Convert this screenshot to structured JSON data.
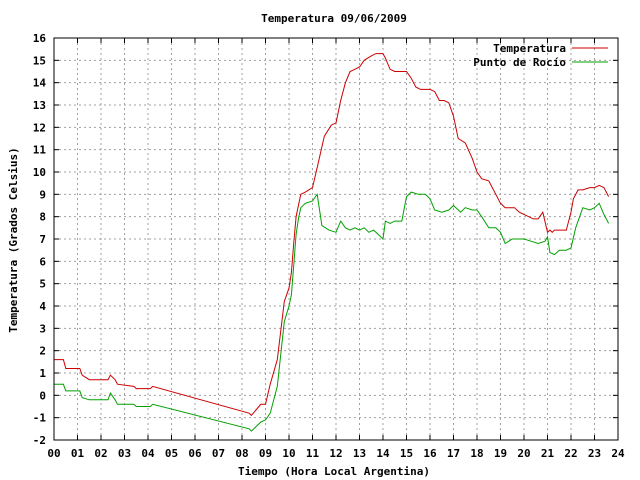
{
  "chart_data": {
    "type": "line",
    "title": "Temperatura 09/06/2009",
    "xlabel": "Tiempo (Hora Local Argentina)",
    "ylabel": "Temperatura (Grados Celsius)",
    "xlim": [
      0,
      24
    ],
    "ylim": [
      -2,
      16
    ],
    "xticks": [
      0,
      1,
      2,
      3,
      4,
      5,
      6,
      7,
      8,
      9,
      10,
      11,
      12,
      13,
      14,
      15,
      16,
      17,
      18,
      19,
      20,
      21,
      22,
      23,
      24
    ],
    "xtick_labels": [
      "00",
      "01",
      "02",
      "03",
      "04",
      "05",
      "06",
      "07",
      "08",
      "09",
      "10",
      "11",
      "12",
      "13",
      "14",
      "15",
      "16",
      "17",
      "18",
      "19",
      "20",
      "21",
      "22",
      "23",
      "24"
    ],
    "yticks": [
      -2,
      -1,
      0,
      1,
      2,
      3,
      4,
      5,
      6,
      7,
      8,
      9,
      10,
      11,
      12,
      13,
      14,
      15,
      16
    ],
    "grid": true,
    "legend_position": "top-right",
    "series": [
      {
        "name": "Temperatura",
        "color": "#cc0000",
        "x": [
          0,
          0.4,
          0.5,
          1.1,
          1.2,
          1.5,
          1.6,
          2.3,
          2.4,
          2.6,
          2.7,
          3.4,
          3.5,
          4.1,
          4.2,
          8.3,
          8.4,
          8.8,
          9.0,
          9.2,
          9.5,
          9.8,
          10.0,
          10.1,
          10.2,
          10.3,
          10.4,
          10.5,
          10.7,
          11.0,
          11.2,
          11.5,
          11.8,
          12.0,
          12.2,
          12.4,
          12.6,
          12.8,
          13.0,
          13.2,
          13.5,
          13.7,
          14.0,
          14.1,
          14.3,
          14.5,
          14.7,
          15.0,
          15.2,
          15.4,
          15.6,
          15.8,
          16.0,
          16.2,
          16.4,
          16.6,
          16.8,
          17.0,
          17.2,
          17.5,
          17.8,
          18.0,
          18.2,
          18.5,
          18.8,
          19.0,
          19.2,
          19.4,
          19.6,
          19.8,
          20.0,
          20.2,
          20.4,
          20.6,
          20.8,
          21.0,
          21.1,
          21.2,
          21.3,
          21.5,
          21.8,
          22.0,
          22.1,
          22.3,
          22.5,
          22.8,
          23.0,
          23.2,
          23.4,
          23.5,
          23.6
        ],
        "values": [
          1.6,
          1.6,
          1.2,
          1.2,
          0.9,
          0.7,
          0.7,
          0.7,
          0.9,
          0.7,
          0.5,
          0.4,
          0.3,
          0.3,
          0.4,
          -0.8,
          -0.9,
          -0.4,
          -0.4,
          0.5,
          1.6,
          4.2,
          4.8,
          5.5,
          6.8,
          8.0,
          8.5,
          9.0,
          9.1,
          9.3,
          10.2,
          11.6,
          12.1,
          12.2,
          13.2,
          14.0,
          14.5,
          14.6,
          14.7,
          15.0,
          15.2,
          15.3,
          15.3,
          15.1,
          14.6,
          14.5,
          14.5,
          14.5,
          14.2,
          13.8,
          13.7,
          13.7,
          13.7,
          13.6,
          13.2,
          13.2,
          13.1,
          12.5,
          11.5,
          11.3,
          10.6,
          10.0,
          9.7,
          9.6,
          9.0,
          8.6,
          8.4,
          8.4,
          8.4,
          8.2,
          8.1,
          8.0,
          7.9,
          7.9,
          8.2,
          7.3,
          7.4,
          7.3,
          7.4,
          7.4,
          7.4,
          8.2,
          8.8,
          9.2,
          9.2,
          9.3,
          9.3,
          9.4,
          9.3,
          9.1,
          8.9
        ]
      },
      {
        "name": "Punto de Rocío",
        "color": "#00a000",
        "x": [
          0,
          0.4,
          0.5,
          1.1,
          1.2,
          1.5,
          1.6,
          2.3,
          2.4,
          2.6,
          2.7,
          3.4,
          3.5,
          4.1,
          4.2,
          8.3,
          8.4,
          8.8,
          9.0,
          9.2,
          9.5,
          9.8,
          10.0,
          10.1,
          10.2,
          10.3,
          10.4,
          10.5,
          10.7,
          11.0,
          11.2,
          11.4,
          11.7,
          12.0,
          12.2,
          12.4,
          12.6,
          12.8,
          13.0,
          13.2,
          13.4,
          13.6,
          13.8,
          14.0,
          14.1,
          14.3,
          14.5,
          14.8,
          15.0,
          15.2,
          15.5,
          15.8,
          16.0,
          16.2,
          16.5,
          16.8,
          17.0,
          17.3,
          17.5,
          17.8,
          18.0,
          18.2,
          18.5,
          18.8,
          19.0,
          19.2,
          19.5,
          19.8,
          20.0,
          20.3,
          20.6,
          20.9,
          21.0,
          21.1,
          21.3,
          21.5,
          21.8,
          22.0,
          22.2,
          22.5,
          22.8,
          23.0,
          23.2,
          23.4,
          23.5,
          23.6
        ],
        "values": [
          0.5,
          0.5,
          0.2,
          0.2,
          -0.1,
          -0.2,
          -0.2,
          -0.2,
          0.1,
          -0.2,
          -0.4,
          -0.4,
          -0.5,
          -0.5,
          -0.4,
          -1.5,
          -1.6,
          -1.2,
          -1.1,
          -0.8,
          0.4,
          3.3,
          4.0,
          4.5,
          5.8,
          7.2,
          7.9,
          8.4,
          8.6,
          8.7,
          9.0,
          7.6,
          7.4,
          7.3,
          7.8,
          7.5,
          7.4,
          7.5,
          7.4,
          7.5,
          7.3,
          7.4,
          7.2,
          7.0,
          7.8,
          7.7,
          7.8,
          7.8,
          8.9,
          9.1,
          9.0,
          9.0,
          8.8,
          8.3,
          8.2,
          8.3,
          8.5,
          8.2,
          8.4,
          8.3,
          8.3,
          8.0,
          7.5,
          7.5,
          7.3,
          6.8,
          7.0,
          7.0,
          7.0,
          6.9,
          6.8,
          6.9,
          7.1,
          6.4,
          6.3,
          6.5,
          6.5,
          6.6,
          7.5,
          8.4,
          8.3,
          8.4,
          8.6,
          8.1,
          7.9,
          7.7
        ]
      }
    ]
  }
}
